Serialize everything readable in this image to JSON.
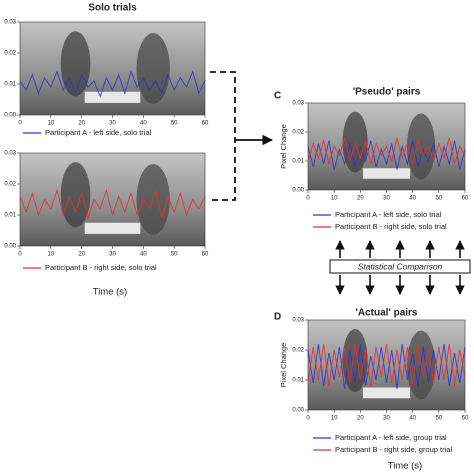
{
  "chart_data": [
    {
      "type": "line",
      "title": "Solo trials",
      "x": [
        0,
        2,
        4,
        6,
        8,
        10,
        12,
        14,
        16,
        18,
        20,
        22,
        24,
        26,
        28,
        30,
        32,
        34,
        36,
        38,
        40,
        42,
        44,
        46,
        48,
        50,
        52,
        54,
        56,
        58,
        60
      ],
      "series": [
        {
          "name": "Participant A - left side, solo trial",
          "color": "#3333cc",
          "values": [
            0.011,
            0.008,
            0.013,
            0.007,
            0.012,
            0.009,
            0.014,
            0.008,
            0.012,
            0.007,
            0.013,
            0.009,
            0.011,
            0.006,
            0.012,
            0.008,
            0.013,
            0.007,
            0.014,
            0.009,
            0.012,
            0.008,
            0.011,
            0.007,
            0.013,
            0.008,
            0.012,
            0.009,
            0.014,
            0.007,
            0.011
          ]
        }
      ],
      "xlim": [
        0,
        60
      ],
      "xticks": [
        0,
        10,
        20,
        30,
        40,
        50,
        60
      ],
      "ylim": [
        0,
        0.03
      ],
      "yticks": [
        {
          "value": 0,
          "label": "0.00"
        },
        {
          "value": 0.01,
          "label": "0.01"
        },
        {
          "value": 0.02,
          "label": "0.02"
        },
        {
          "value": 0.03,
          "label": "0.03"
        }
      ]
    },
    {
      "type": "line",
      "x_label": "Time (s)",
      "x": [
        0,
        2,
        4,
        6,
        8,
        10,
        12,
        14,
        16,
        18,
        20,
        22,
        24,
        26,
        28,
        30,
        32,
        34,
        36,
        38,
        40,
        42,
        44,
        46,
        48,
        50,
        52,
        54,
        56,
        58,
        60
      ],
      "series": [
        {
          "name": "Participant B - right side, solo trial",
          "color": "#e83030",
          "values": [
            0.016,
            0.011,
            0.017,
            0.01,
            0.015,
            0.012,
            0.018,
            0.01,
            0.016,
            0.011,
            0.017,
            0.009,
            0.015,
            0.012,
            0.018,
            0.01,
            0.016,
            0.011,
            0.017,
            0.01,
            0.015,
            0.012,
            0.018,
            0.009,
            0.016,
            0.011,
            0.017,
            0.01,
            0.015,
            0.012,
            0.016
          ]
        }
      ],
      "xlim": [
        0,
        60
      ],
      "xticks": [
        0,
        10,
        20,
        30,
        40,
        50,
        60
      ],
      "ylim": [
        0,
        0.03
      ],
      "yticks": [
        {
          "value": 0,
          "label": "0.00"
        },
        {
          "value": 0.01,
          "label": "0.01"
        },
        {
          "value": 0.02,
          "label": "0.02"
        },
        {
          "value": 0.03,
          "label": "0.03"
        }
      ]
    },
    {
      "type": "line",
      "panel_label": "C",
      "title": "'Pseudo' pairs",
      "y_label": "Pixel Change",
      "x": [
        0,
        2,
        4,
        6,
        8,
        10,
        12,
        14,
        16,
        18,
        20,
        22,
        24,
        26,
        28,
        30,
        32,
        34,
        36,
        38,
        40,
        42,
        44,
        46,
        48,
        50,
        52,
        54,
        56,
        58,
        60
      ],
      "series": [
        {
          "name": "Participant A - left side, solo trial",
          "color": "#3333cc",
          "values": [
            0.015,
            0.008,
            0.016,
            0.009,
            0.017,
            0.007,
            0.014,
            0.009,
            0.016,
            0.008,
            0.015,
            0.01,
            0.017,
            0.008,
            0.014,
            0.009,
            0.016,
            0.007,
            0.015,
            0.009,
            0.017,
            0.008,
            0.014,
            0.01,
            0.016,
            0.008,
            0.015,
            0.009,
            0.017,
            0.007,
            0.014
          ]
        },
        {
          "name": "Participant B - right side, solo trial",
          "color": "#e83030",
          "values": [
            0.01,
            0.016,
            0.011,
            0.017,
            0.009,
            0.015,
            0.012,
            0.018,
            0.01,
            0.016,
            0.011,
            0.017,
            0.009,
            0.016,
            0.012,
            0.015,
            0.01,
            0.018,
            0.011,
            0.016,
            0.009,
            0.017,
            0.012,
            0.015,
            0.01,
            0.016,
            0.011,
            0.018,
            0.009,
            0.015,
            0.012
          ]
        }
      ],
      "xlim": [
        0,
        60
      ],
      "xticks": [
        0,
        10,
        20,
        30,
        40,
        50,
        60
      ],
      "ylim": [
        0,
        0.03
      ],
      "yticks": [
        {
          "value": 0,
          "label": "0.00"
        },
        {
          "value": 0.01,
          "label": "0.01"
        },
        {
          "value": 0.02,
          "label": "0.02"
        },
        {
          "value": 0.03,
          "label": "0.03"
        }
      ]
    },
    {
      "type": "line",
      "panel_label": "D",
      "title": "'Actual' pairs",
      "y_label": "Pixel Change",
      "x_label": "Time (s)",
      "x": [
        0,
        2,
        4,
        6,
        8,
        10,
        12,
        14,
        16,
        18,
        20,
        22,
        24,
        26,
        28,
        30,
        32,
        34,
        36,
        38,
        40,
        42,
        44,
        46,
        48,
        50,
        52,
        54,
        56,
        58,
        60
      ],
      "series": [
        {
          "name": "Participant A - left side, group trial",
          "color": "#3333cc",
          "values": [
            0.02,
            0.009,
            0.022,
            0.008,
            0.019,
            0.01,
            0.021,
            0.007,
            0.02,
            0.009,
            0.022,
            0.008,
            0.018,
            0.01,
            0.021,
            0.009,
            0.02,
            0.007,
            0.022,
            0.01,
            0.019,
            0.008,
            0.021,
            0.009,
            0.02,
            0.01,
            0.022,
            0.008,
            0.019,
            0.009,
            0.021
          ]
        },
        {
          "name": "Participant B - right side, group trial",
          "color": "#e83030",
          "values": [
            0.009,
            0.021,
            0.01,
            0.022,
            0.008,
            0.02,
            0.011,
            0.021,
            0.009,
            0.022,
            0.01,
            0.02,
            0.008,
            0.021,
            0.011,
            0.022,
            0.009,
            0.02,
            0.01,
            0.021,
            0.008,
            0.022,
            0.011,
            0.02,
            0.009,
            0.021,
            0.01,
            0.022,
            0.008,
            0.02,
            0.011
          ]
        }
      ],
      "xlim": [
        0,
        60
      ],
      "xticks": [
        0,
        10,
        20,
        30,
        40,
        50,
        60
      ],
      "ylim": [
        0,
        0.03
      ],
      "yticks": [
        {
          "value": 0,
          "label": "0.00"
        },
        {
          "value": 0.01,
          "label": "0.01"
        },
        {
          "value": 0.02,
          "label": "0.02"
        },
        {
          "value": 0.03,
          "label": "0.03"
        }
      ]
    }
  ],
  "annotations": {
    "comparison": "Statistical Comparison"
  }
}
